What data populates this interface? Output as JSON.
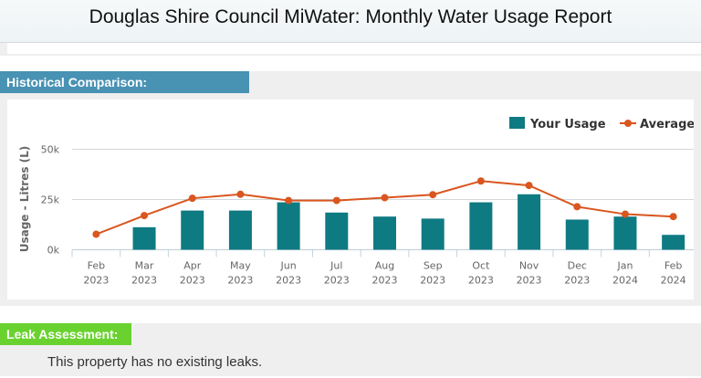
{
  "header": {
    "title": "Douglas Shire Council MiWater: Monthly Water Usage Report"
  },
  "historical": {
    "heading": "Historical Comparison:"
  },
  "leak": {
    "heading": "Leak Assessment:",
    "text": "This property has no existing leaks."
  },
  "colors": {
    "usage": "#0e7a82",
    "average": "#d9561f",
    "historical_header": "#4892b3",
    "leak_header": "#6ad22f"
  },
  "chart_data": {
    "type": "bar",
    "ylabel": "Usage - Litres (L)",
    "ylim": [
      0,
      50000
    ],
    "yticks": [
      {
        "v": 0,
        "label": "0k"
      },
      {
        "v": 25000,
        "label": "25k"
      },
      {
        "v": 50000,
        "label": "50k"
      }
    ],
    "grid": true,
    "legend_position": "top-right",
    "categories": [
      [
        "Feb",
        "2023"
      ],
      [
        "Mar",
        "2023"
      ],
      [
        "Apr",
        "2023"
      ],
      [
        "May",
        "2023"
      ],
      [
        "Jun",
        "2023"
      ],
      [
        "Jul",
        "2023"
      ],
      [
        "Aug",
        "2023"
      ],
      [
        "Sep",
        "2023"
      ],
      [
        "Oct",
        "2023"
      ],
      [
        "Nov",
        "2023"
      ],
      [
        "Dec",
        "2023"
      ],
      [
        "Jan",
        "2024"
      ],
      [
        "Feb",
        "2024"
      ]
    ],
    "series": [
      {
        "name": "Your Usage",
        "type": "bar",
        "values": [
          0,
          11200,
          19500,
          19500,
          23600,
          18500,
          16500,
          15500,
          23600,
          27600,
          15000,
          16500,
          7400
        ]
      },
      {
        "name": "Average",
        "type": "line",
        "values": [
          7700,
          17000,
          25600,
          27600,
          24500,
          24500,
          25900,
          27400,
          34200,
          32000,
          21400,
          17700,
          16500
        ]
      }
    ]
  }
}
